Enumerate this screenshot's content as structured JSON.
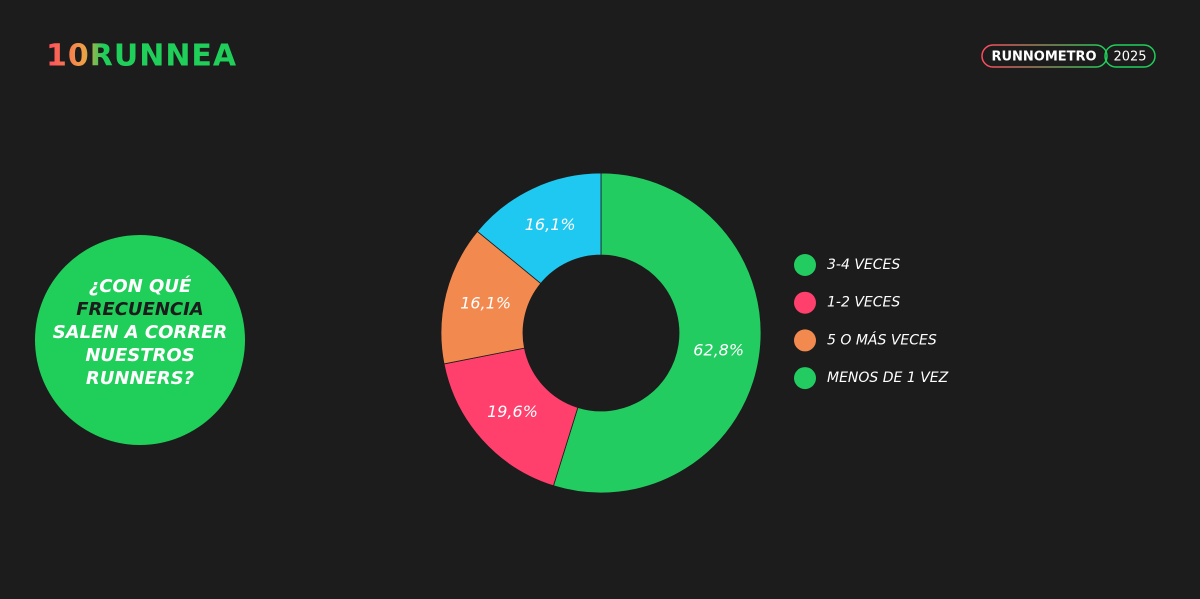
{
  "logo": "10RUNNEA",
  "badge": {
    "label": "RUNNOMETRO",
    "year": "2025"
  },
  "question": {
    "lines": [
      "¿CON QUÉ",
      "FRECUENCIA",
      "SALEN A CORRER",
      "NUESTROS",
      "RUNNERS?"
    ]
  },
  "chart_data": {
    "type": "donut",
    "categories": [
      "3-4 VECES",
      "1-2 VECES",
      "5 O MÁS VECES",
      "MENOS DE 1 VEZ"
    ],
    "values": [
      62.8,
      19.6,
      16.1,
      16.1
    ],
    "value_labels": [
      "62,8%",
      "19,6%",
      "16,1%",
      "16,1%"
    ],
    "colors": [
      "#22cc60",
      "#ff3f6c",
      "#f2894f",
      "#1fc8f0"
    ],
    "legend_colors": [
      "#22cc60",
      "#ff3f6c",
      "#f2894f",
      "#22cc60"
    ],
    "legend": "right"
  }
}
